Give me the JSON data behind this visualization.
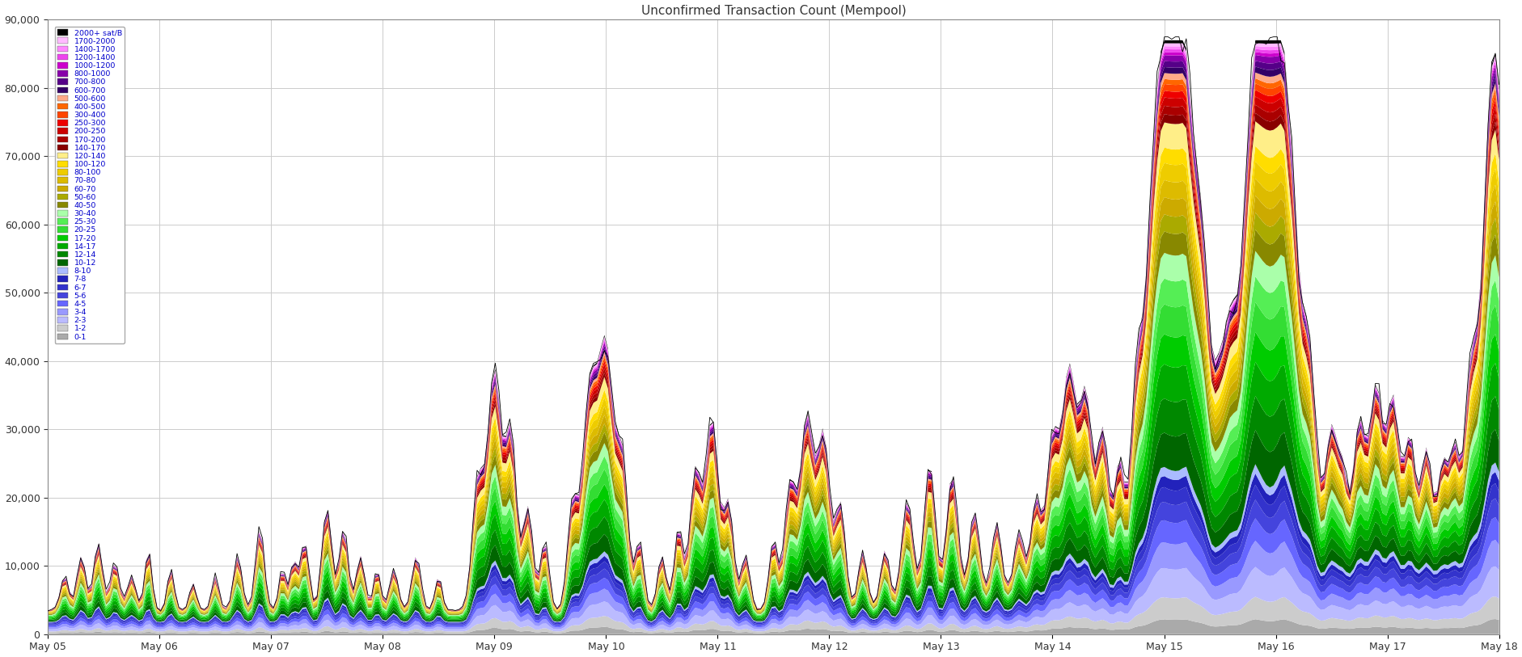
{
  "title": "Unconfirmed Transaction Count (Mempool)",
  "ylim": [
    0,
    90000
  ],
  "yticks": [
    0,
    10000,
    20000,
    30000,
    40000,
    50000,
    60000,
    70000,
    80000,
    90000
  ],
  "x_labels": [
    "May 05",
    "May 06",
    "May 07",
    "May 08",
    "May 09",
    "May 10",
    "May 11",
    "May 12",
    "May 13",
    "May 14",
    "May 15",
    "May 16",
    "May 17",
    "May 18"
  ],
  "background_color": "#ffffff",
  "grid_color": "#cccccc",
  "fee_bands": [
    {
      "label": "2000+ sat/B",
      "color": "#000000"
    },
    {
      "label": "1700-2000",
      "color": "#ffbbff"
    },
    {
      "label": "1400-1700",
      "color": "#ff88ff"
    },
    {
      "label": "1200-1400",
      "color": "#ee44ee"
    },
    {
      "label": "1000-1200",
      "color": "#cc00cc"
    },
    {
      "label": "800-1000",
      "color": "#8800aa"
    },
    {
      "label": "700-800",
      "color": "#550088"
    },
    {
      "label": "600-700",
      "color": "#330066"
    },
    {
      "label": "500-600",
      "color": "#ffaa88"
    },
    {
      "label": "400-500",
      "color": "#ff6600"
    },
    {
      "label": "300-400",
      "color": "#ff4400"
    },
    {
      "label": "250-300",
      "color": "#ee0000"
    },
    {
      "label": "200-250",
      "color": "#cc0000"
    },
    {
      "label": "170-200",
      "color": "#aa0000"
    },
    {
      "label": "140-170",
      "color": "#880000"
    },
    {
      "label": "120-140",
      "color": "#ffee88"
    },
    {
      "label": "100-120",
      "color": "#ffdd00"
    },
    {
      "label": "80-100",
      "color": "#eecc00"
    },
    {
      "label": "70-80",
      "color": "#ddbb00"
    },
    {
      "label": "60-70",
      "color": "#ccaa00"
    },
    {
      "label": "50-60",
      "color": "#aaaa00"
    },
    {
      "label": "40-50",
      "color": "#888800"
    },
    {
      "label": "30-40",
      "color": "#aaffaa"
    },
    {
      "label": "25-30",
      "color": "#55ee55"
    },
    {
      "label": "20-25",
      "color": "#33dd33"
    },
    {
      "label": "17-20",
      "color": "#00cc00"
    },
    {
      "label": "14-17",
      "color": "#00aa00"
    },
    {
      "label": "12-14",
      "color": "#008800"
    },
    {
      "label": "10-12",
      "color": "#006600"
    },
    {
      "label": "8-10",
      "color": "#aabbff"
    },
    {
      "label": "7-8",
      "color": "#2222bb"
    },
    {
      "label": "6-7",
      "color": "#3333cc"
    },
    {
      "label": "5-6",
      "color": "#4444dd"
    },
    {
      "label": "4-5",
      "color": "#6666ff"
    },
    {
      "label": "3-4",
      "color": "#9999ff"
    },
    {
      "label": "2-3",
      "color": "#bbbbff"
    },
    {
      "label": "1-2",
      "color": "#cccccc"
    },
    {
      "label": "0-1",
      "color": "#aaaaaa"
    }
  ],
  "num_points": 400
}
